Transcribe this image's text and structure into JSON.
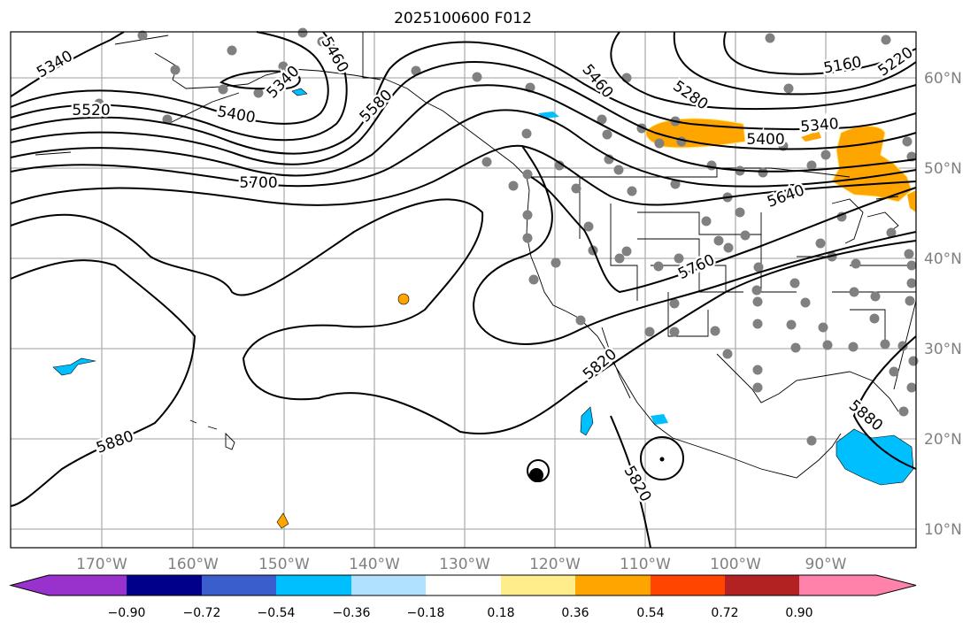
{
  "title": "2025100600 F012",
  "lon_labels": [
    "170°W",
    "160°W",
    "150°W",
    "140°W",
    "130°W",
    "120°W",
    "110°W",
    "100°W",
    "90°W"
  ],
  "lat_labels": [
    "60°N",
    "50°N",
    "40°N",
    "30°N",
    "20°N",
    "10°N"
  ],
  "contour_labels": [
    "5340",
    "5460",
    "5340",
    "5520",
    "5400",
    "5580",
    "5700",
    "5460",
    "5280",
    "5160",
    "5220",
    "5340",
    "5400",
    "5640",
    "5760",
    "5820",
    "5880",
    "5820",
    "5880"
  ],
  "colorbar": {
    "ticks": [
      "−0.90",
      "−0.72",
      "−0.54",
      "−0.36",
      "−0.18",
      "0.18",
      "0.36",
      "0.54",
      "0.72",
      "0.90"
    ],
    "colors": [
      "#9932cc",
      "#00008b",
      "#3a5fcd",
      "#00bfff",
      "#b0e2ff",
      "#ffffff",
      "#ffec8b",
      "#ffa500",
      "#ff4500",
      "#b22222",
      "#ff82ab"
    ]
  },
  "colors": {
    "positive_fill": "#ffa500",
    "negative_fill": "#00bfff",
    "station": "#808080"
  }
}
